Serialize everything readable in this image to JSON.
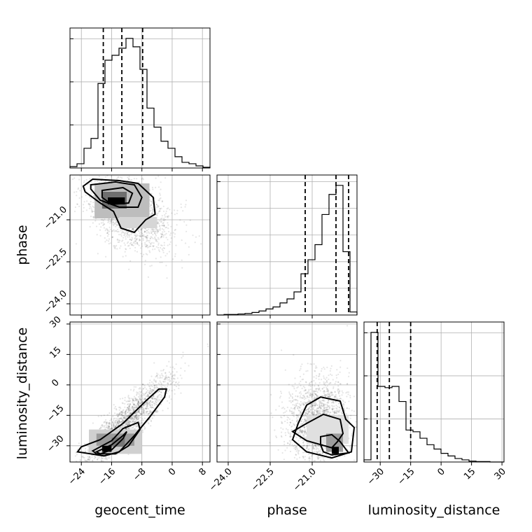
{
  "chart_data": {
    "type": "corner",
    "parameters": [
      "geocent_time",
      "phase",
      "luminosity_distance"
    ],
    "axis_labels": {
      "geocent_time": "geocent_time",
      "phase": "phase",
      "luminosity_distance": "luminosity_distance"
    },
    "ranges": {
      "geocent_time": [
        -27,
        10
      ],
      "phase": [
        -24.4,
        -19.4
      ],
      "luminosity_distance": [
        -38,
        31
      ]
    },
    "ticks": {
      "geocent_time": [
        -24,
        -16,
        -8,
        0,
        8
      ],
      "phase": [
        -24.0,
        -22.5,
        -21.0
      ],
      "luminosity_distance": [
        -30,
        -15,
        0,
        15,
        30
      ]
    },
    "tick_labels": {
      "geocent_time": [
        "−24",
        "−16",
        "−8",
        "0",
        "8"
      ],
      "phase": [
        "−24.0",
        "−22.5",
        "−21.0"
      ],
      "luminosity_distance": [
        "−30",
        "−15",
        "0",
        "15",
        "30"
      ]
    },
    "quantiles": {
      "geocent_time": [
        -18.2,
        -13.3,
        -7.8
      ],
      "phase": [
        -21.25,
        -20.15,
        -19.7
      ],
      "luminosity_distance": [
        -31.5,
        -25.5,
        -15.0
      ]
    },
    "histograms": {
      "geocent_time": {
        "edges": [
          -27,
          -25.15,
          -23.3,
          -21.45,
          -19.6,
          -17.75,
          -15.9,
          -14.05,
          -12.2,
          -10.35,
          -8.5,
          -6.65,
          -4.8,
          -2.95,
          -1.1,
          0.75,
          2.6,
          4.45,
          6.3,
          8.15,
          10
        ],
        "counts": [
          2,
          6,
          28,
          42,
          120,
          153,
          160,
          170,
          184,
          172,
          140,
          85,
          58,
          38,
          28,
          16,
          8,
          6,
          3,
          1
        ]
      },
      "phase": {
        "edges": [
          -24.4,
          -24.15,
          -23.9,
          -23.65,
          -23.4,
          -23.15,
          -22.9,
          -22.65,
          -22.4,
          -22.15,
          -21.9,
          -21.65,
          -21.4,
          -21.15,
          -20.9,
          -20.65,
          -20.4,
          -20.15,
          -19.9,
          -19.65,
          -19.4
        ],
        "counts": [
          0,
          1,
          1,
          2,
          3,
          5,
          8,
          12,
          16,
          24,
          32,
          46,
          82,
          110,
          140,
          200,
          240,
          258,
          126,
          6
        ]
      },
      "luminosity_distance": {
        "edges": [
          -38,
          -34.55,
          -31.1,
          -27.65,
          -24.2,
          -20.75,
          -17.3,
          -13.85,
          -10.4,
          -6.95,
          -3.5,
          -0.05,
          3.4,
          6.85,
          10.3,
          13.75,
          17.2,
          20.65,
          24.1,
          27.55,
          31
        ],
        "counts": [
          5,
          300,
          175,
          172,
          175,
          140,
          74,
          70,
          55,
          40,
          30,
          20,
          14,
          8,
          5,
          2,
          1,
          1,
          0,
          0
        ]
      }
    },
    "grid": true,
    "legend": "none"
  }
}
